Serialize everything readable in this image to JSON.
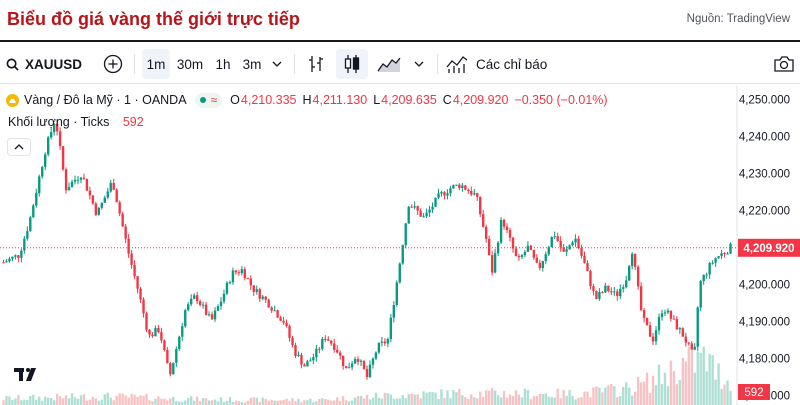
{
  "page": {
    "title": "Biểu đồ giá vàng thế giới trực tiếp",
    "source": "Nguồn: TradingView"
  },
  "toolbar": {
    "symbol": "XAUUSD",
    "intervals": [
      "1m",
      "30m",
      "1h",
      "3m"
    ],
    "active_interval": "1m",
    "indicators_label": "Các chỉ báo"
  },
  "legend": {
    "instrument": "Vàng / Đô la Mỹ · 1 · OANDA",
    "open_key": "O",
    "open": "4,210.335",
    "high_key": "H",
    "high": "4,211.130",
    "low_key": "L",
    "low": "4,209.635",
    "close_key": "C",
    "close": "4,209.920",
    "change": "−0.350 (−0.01%)",
    "volume_label": "Khối lượng · Ticks",
    "volume_value": "592"
  },
  "chart_data": {
    "type": "candlestick",
    "y_ticks": [
      "4,250.000",
      "4,240.000",
      "4,230.000",
      "4,220.000",
      "4,210.000",
      "4,200.000",
      "4,190.000",
      "4,180.000",
      "4,170.000"
    ],
    "ylim": [
      4168,
      4252
    ],
    "current_price": 4209.92,
    "current_price_label": "4,209.920",
    "current_volume_label": "592",
    "up_color": "#089981",
    "down_color": "#f23645",
    "price_path_anchors": [
      [
        0,
        4206
      ],
      [
        3,
        4208
      ],
      [
        5,
        4217
      ],
      [
        8,
        4236
      ],
      [
        10,
        4245
      ],
      [
        12,
        4226
      ],
      [
        15,
        4230
      ],
      [
        18,
        4219
      ],
      [
        21,
        4228
      ],
      [
        24,
        4209
      ],
      [
        26,
        4198
      ],
      [
        28,
        4186
      ],
      [
        30,
        4188
      ],
      [
        32,
        4175
      ],
      [
        35,
        4193
      ],
      [
        37,
        4197
      ],
      [
        40,
        4190
      ],
      [
        42,
        4196
      ],
      [
        44,
        4203
      ],
      [
        46,
        4204
      ],
      [
        48,
        4199
      ],
      [
        51,
        4195
      ],
      [
        54,
        4190
      ],
      [
        56,
        4182
      ],
      [
        58,
        4178
      ],
      [
        60,
        4181
      ],
      [
        62,
        4186
      ],
      [
        64,
        4183
      ],
      [
        66,
        4177
      ],
      [
        68,
        4181
      ],
      [
        70,
        4175
      ],
      [
        72,
        4183
      ],
      [
        74,
        4185
      ],
      [
        76,
        4203
      ],
      [
        78,
        4222
      ],
      [
        81,
        4218
      ],
      [
        84,
        4224
      ],
      [
        86,
        4226
      ],
      [
        88,
        4227
      ],
      [
        91,
        4224
      ],
      [
        93,
        4212
      ],
      [
        94,
        4203
      ],
      [
        96,
        4218
      ],
      [
        99,
        4206
      ],
      [
        101,
        4210
      ],
      [
        103,
        4204
      ],
      [
        106,
        4214
      ],
      [
        108,
        4208
      ],
      [
        110,
        4213
      ],
      [
        112,
        4205
      ],
      [
        114,
        4196
      ],
      [
        116,
        4199
      ],
      [
        118,
        4197
      ],
      [
        120,
        4202
      ],
      [
        121,
        4210
      ],
      [
        123,
        4191
      ],
      [
        125,
        4185
      ],
      [
        127,
        4194
      ],
      [
        129,
        4190
      ],
      [
        131,
        4186
      ],
      [
        133,
        4180
      ],
      [
        134,
        4200
      ],
      [
        136,
        4205
      ],
      [
        137,
        4207
      ],
      [
        139,
        4209
      ],
      [
        140,
        4210
      ]
    ],
    "volume_anchors": [
      [
        0,
        0.12
      ],
      [
        20,
        0.16
      ],
      [
        40,
        0.1
      ],
      [
        60,
        0.09
      ],
      [
        75,
        0.18
      ],
      [
        90,
        0.22
      ],
      [
        110,
        0.2
      ],
      [
        120,
        0.3
      ],
      [
        125,
        0.45
      ],
      [
        128,
        0.6
      ],
      [
        131,
        0.75
      ],
      [
        135,
        0.85
      ],
      [
        138,
        0.55
      ],
      [
        140,
        0.4
      ]
    ]
  }
}
